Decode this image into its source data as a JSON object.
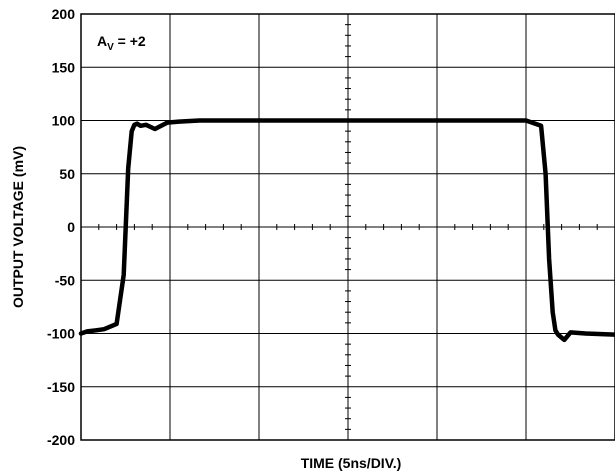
{
  "chart_data": {
    "type": "line",
    "title": "",
    "xlabel": "TIME (5ns/DIV.)",
    "ylabel": "OUTPUT VOLTAGE (mV)",
    "ylim": [
      -200,
      200
    ],
    "xlim": [
      0,
      6
    ],
    "x_divisions": 6,
    "y_ticks": [
      200,
      150,
      100,
      50,
      0,
      -50,
      -100,
      -150,
      -200
    ],
    "y_tick_labels": [
      "200",
      "150",
      "100",
      "50",
      "0",
      "-50",
      "-100",
      "-150",
      "-200"
    ],
    "grid": true,
    "annotation": {
      "main": "A",
      "sub": "V",
      "rest": " = +2"
    },
    "series": [
      {
        "x": [
          0.0,
          0.07,
          0.17,
          0.26,
          0.4,
          0.48,
          0.53,
          0.57,
          0.6,
          0.63,
          0.67,
          0.73,
          0.83,
          0.97,
          1.1,
          1.33,
          1.67,
          2.33,
          3.0,
          4.0,
          5.0,
          5.17,
          5.22,
          5.26,
          5.3,
          5.33,
          5.36,
          5.43,
          5.5,
          5.67,
          6.0
        ],
        "y": [
          -100,
          -98,
          -97,
          -96,
          -91,
          -45,
          55,
          90,
          96,
          97,
          95,
          96,
          92,
          98,
          99,
          100,
          100,
          100,
          100,
          100,
          100,
          95,
          50,
          -30,
          -80,
          -97,
          -101,
          -106,
          -99,
          -100,
          -101
        ]
      }
    ]
  }
}
